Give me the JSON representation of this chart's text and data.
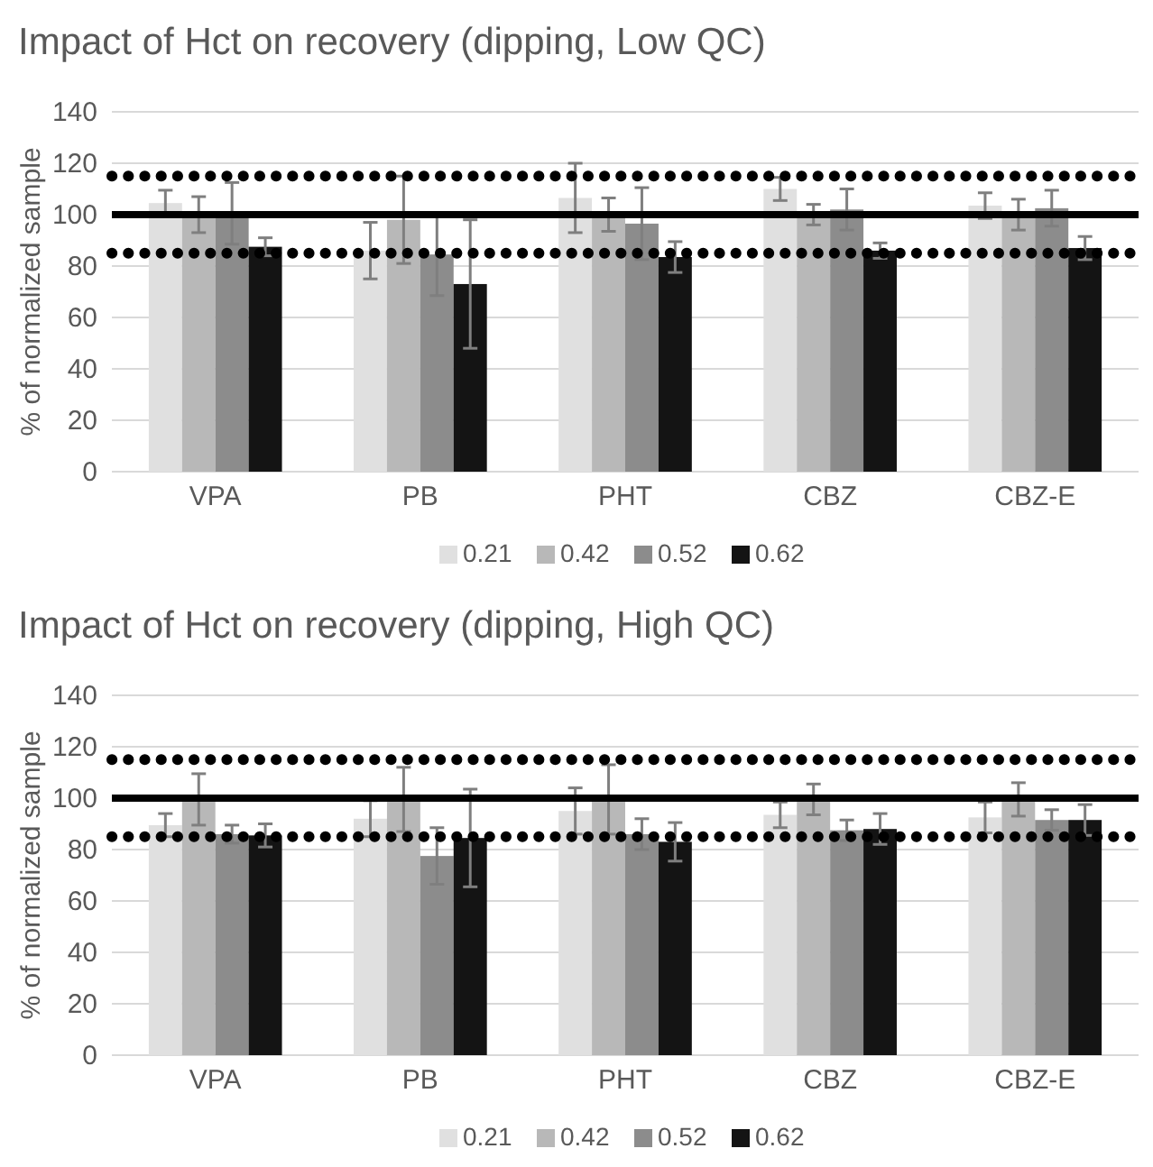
{
  "chart_data": [
    {
      "type": "bar",
      "title": "Impact of Hct on recovery (dipping, Low QC)",
      "ylabel": "% of normalized sample",
      "categories": [
        "VPA",
        "PB",
        "PHT",
        "CBZ",
        "CBZ-E"
      ],
      "ylim": [
        0,
        140
      ],
      "yticks": [
        0,
        20,
        40,
        60,
        80,
        100,
        120,
        140
      ],
      "grid": "y",
      "legend": "bottom",
      "series": [
        {
          "name": "0.21",
          "color": "#e0e0e0",
          "values": [
            104.5,
            86,
            106.5,
            110,
            103.5
          ],
          "errors": [
            5,
            11,
            13.5,
            4.5,
            5
          ]
        },
        {
          "name": "0.42",
          "color": "#b8b8b8",
          "values": [
            100,
            98,
            100,
            100,
            100
          ],
          "errors": [
            7,
            17,
            6.5,
            4,
            6
          ]
        },
        {
          "name": "0.52",
          "color": "#8c8c8c",
          "values": [
            100.5,
            84.5,
            96.5,
            102,
            102.5
          ],
          "errors": [
            12,
            16,
            14,
            8,
            7
          ]
        },
        {
          "name": "0.62",
          "color": "#141414",
          "values": [
            87.5,
            73,
            83.5,
            86,
            87
          ],
          "errors": [
            3.5,
            25,
            6,
            3,
            4.5
          ]
        }
      ],
      "ref_lines": [
        {
          "axis": "y",
          "value": 100,
          "label": null,
          "color": "#000000",
          "line_style": "solid"
        },
        {
          "axis": "y",
          "value": 115,
          "label": null,
          "color": "#000000",
          "line_style": "dotted"
        },
        {
          "axis": "y",
          "value": 85,
          "label": null,
          "color": "#000000",
          "line_style": "dotted"
        }
      ]
    },
    {
      "type": "bar",
      "title": "Impact of Hct on recovery (dipping, High QC)",
      "ylabel": "% of normalized sample",
      "categories": [
        "VPA",
        "PB",
        "PHT",
        "CBZ",
        "CBZ-E"
      ],
      "ylim": [
        0,
        140
      ],
      "yticks": [
        0,
        20,
        40,
        60,
        80,
        100,
        120,
        140
      ],
      "grid": "y",
      "legend": "bottom",
      "series": [
        {
          "name": "0.21",
          "color": "#e0e0e0",
          "values": [
            89.5,
            92,
            95,
            93.5,
            92.5
          ],
          "errors": [
            4.5,
            7,
            9,
            5,
            6
          ]
        },
        {
          "name": "0.42",
          "color": "#b8b8b8",
          "values": [
            99.5,
            99.5,
            99.5,
            99.5,
            99.5
          ],
          "errors": [
            10,
            12.5,
            13.5,
            6,
            6.5
          ]
        },
        {
          "name": "0.52",
          "color": "#8c8c8c",
          "values": [
            86,
            77.5,
            86,
            87.5,
            91.5
          ],
          "errors": [
            3.5,
            11,
            6,
            4,
            4
          ]
        },
        {
          "name": "0.62",
          "color": "#141414",
          "values": [
            85.5,
            84.5,
            83,
            88,
            91.5
          ],
          "errors": [
            4.5,
            19,
            7.5,
            6,
            6
          ]
        }
      ],
      "ref_lines": [
        {
          "axis": "y",
          "value": 100,
          "label": null,
          "color": "#000000",
          "line_style": "solid"
        },
        {
          "axis": "y",
          "value": 115,
          "label": null,
          "color": "#000000",
          "line_style": "dotted"
        },
        {
          "axis": "y",
          "value": 85,
          "label": null,
          "color": "#000000",
          "line_style": "dotted"
        }
      ]
    }
  ]
}
